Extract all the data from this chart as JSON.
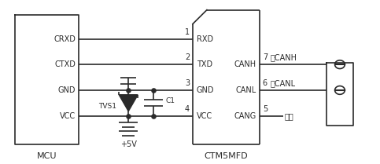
{
  "bg_color": "#ffffff",
  "line_color": "#2a2a2a",
  "mcu_label": "MCU",
  "ctm_label": "CTM5MFD",
  "mcu_pins": [
    "CRXD",
    "CTXD",
    "GND",
    "VCC"
  ],
  "ctm_left_pins": [
    "RXD",
    "TXD",
    "GND",
    "VCC"
  ],
  "ctm_pin_numbers": [
    "1",
    "2",
    "3",
    "4"
  ],
  "ctm_right_pins": [
    "CANH",
    "CANL",
    "CANG"
  ],
  "ctm_right_labels": [
    "7",
    "6",
    "5"
  ],
  "ctm_right_text": [
    "接CANH",
    "接CANL",
    "悬空"
  ],
  "plus5v_label": "+5V",
  "tvs_label": "TVS1",
  "c1_label": "C1"
}
